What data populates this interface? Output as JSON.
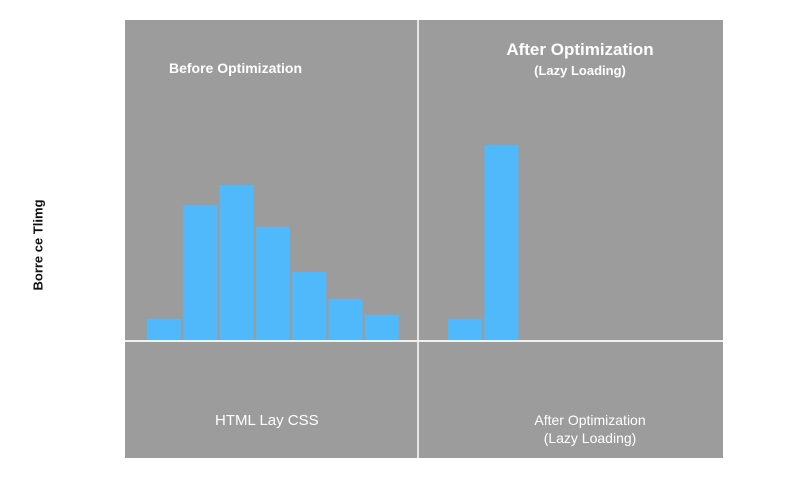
{
  "chart_data": {
    "type": "bar",
    "ylabel": "Borre ce Tlimg",
    "ylim": [
      0,
      320
    ],
    "grid": false,
    "bar_color": "#4fb9fb",
    "background_color": "#9c9c9c",
    "panels": [
      {
        "title": "Before Optimization",
        "subtitle": "",
        "bottom_label": "HTML Lay CSS",
        "values": [
          21,
          135,
          155,
          113,
          68,
          41,
          25
        ]
      },
      {
        "title": "After Optimization",
        "subtitle": "(Lazy Loading)",
        "bottom_label": "After Optimization",
        "bottom_sublabel": "(Lazy Loading)",
        "values": [
          21,
          195
        ]
      }
    ]
  }
}
